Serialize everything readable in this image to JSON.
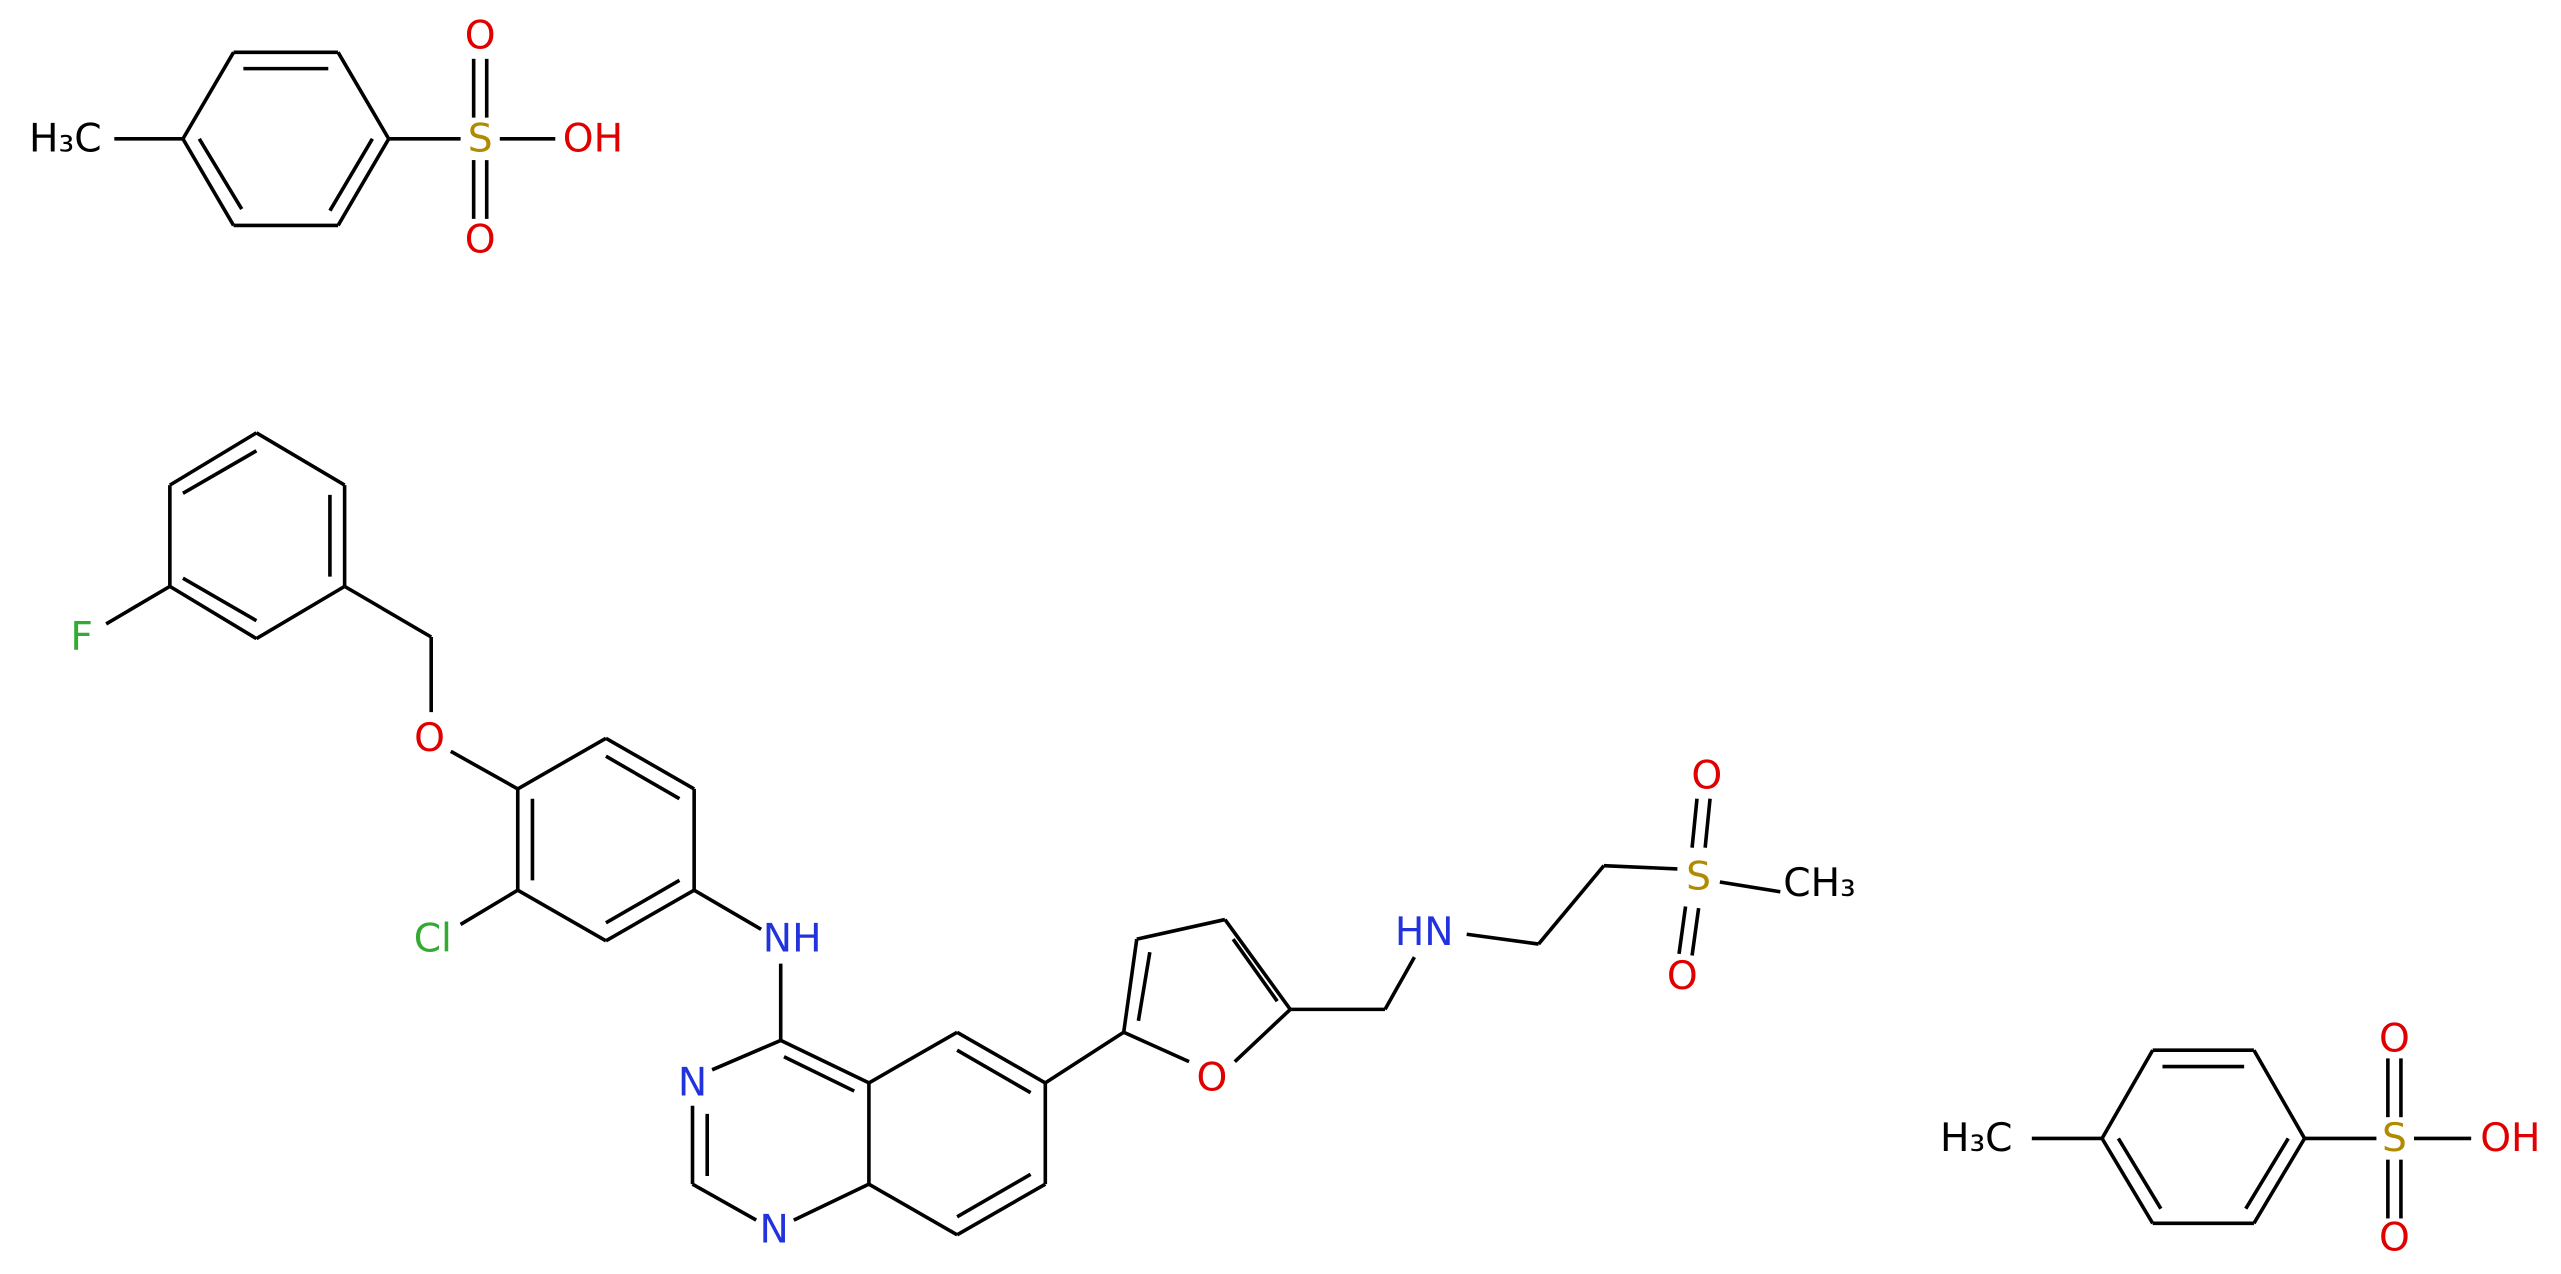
{
  "molecule": {
    "atoms": [
      {
        "label": "H₃C"
      },
      {
        "label": "S"
      },
      {
        "label": "O"
      },
      {
        "label": "O"
      },
      {
        "label": "OH"
      },
      {
        "label": "F"
      },
      {
        "label": "O"
      },
      {
        "label": "Cl"
      },
      {
        "label": "NH"
      },
      {
        "label": "N"
      },
      {
        "label": "N"
      },
      {
        "label": "O"
      },
      {
        "label": "HN"
      },
      {
        "label": "S"
      },
      {
        "label": "O"
      },
      {
        "label": "O"
      },
      {
        "label": "CH₃"
      },
      {
        "label": "H₃C"
      },
      {
        "label": "S"
      },
      {
        "label": "O"
      },
      {
        "label": "O"
      },
      {
        "label": "OH"
      }
    ]
  }
}
